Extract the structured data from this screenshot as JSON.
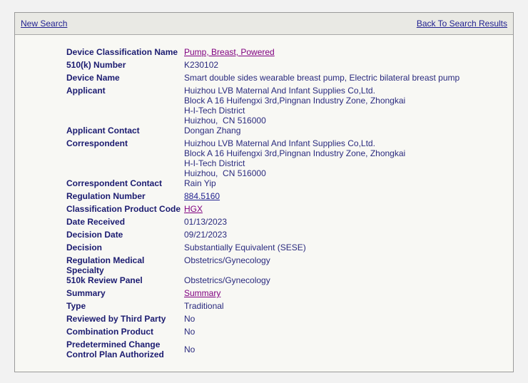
{
  "header": {
    "new_search": "New Search",
    "back_to_results": "Back To Search Results"
  },
  "colors": {
    "label": "#1b1b70",
    "value": "#2a2a7e",
    "link": "#1f1f8f",
    "visited_link": "#800080",
    "panel_bg": "#f8f8f4",
    "header_bg": "#e9e9e4"
  },
  "fields": {
    "device_classification_name": {
      "label": "Device Classification Name",
      "value": "Pump, Breast, Powered"
    },
    "k_number": {
      "label": "510(k) Number",
      "value": "K230102"
    },
    "device_name": {
      "label": "Device Name",
      "value": "Smart double sides wearable breast pump, Electric bilateral breast pump"
    },
    "applicant": {
      "label": "Applicant",
      "lines": [
        "Huizhou LVB Maternal And Infant Supplies Co,Ltd.",
        "Block A 16 Huifengxi 3rd,Pingnan Industry Zone, Zhongkai",
        "H-I-Tech District",
        "Huizhou,  CN 516000"
      ]
    },
    "applicant_contact": {
      "label": "Applicant Contact",
      "value": "Dongan Zhang"
    },
    "correspondent": {
      "label": "Correspondent",
      "lines": [
        "Huizhou LVB Maternal And Infant Supplies Co,Ltd.",
        "Block A 16 Huifengxi 3rd,Pingnan Industry Zone, Zhongkai",
        "H-I-Tech District",
        "Huizhou,  CN 516000"
      ]
    },
    "correspondent_contact": {
      "label": "Correspondent Contact",
      "value": "Rain Yip"
    },
    "regulation_number": {
      "label": "Regulation Number",
      "value": "884.5160"
    },
    "product_code": {
      "label": "Classification Product Code",
      "value": "HGX"
    },
    "date_received": {
      "label": "Date Received",
      "value": "01/13/2023"
    },
    "decision_date": {
      "label": "Decision Date",
      "value": "09/21/2023"
    },
    "decision": {
      "label": "Decision",
      "value": "Substantially Equivalent (SESE)"
    },
    "specialty": {
      "label": "Regulation Medical Specialty",
      "value": "Obstetrics/Gynecology"
    },
    "review_panel": {
      "label": "510k Review Panel",
      "value": "Obstetrics/Gynecology"
    },
    "summary": {
      "label": "Summary",
      "value": "Summary"
    },
    "type": {
      "label": "Type",
      "value": "Traditional"
    },
    "third_party": {
      "label": "Reviewed by Third Party",
      "value": "No"
    },
    "combination": {
      "label": "Combination Product",
      "value": "No"
    },
    "pccp": {
      "label_line1": "Predetermined Change",
      "label_line2": "Control Plan Authorized",
      "value": "No"
    }
  }
}
